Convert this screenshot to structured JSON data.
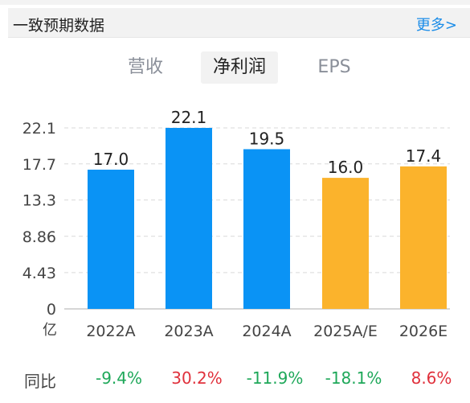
{
  "header": {
    "title": "一致预期数据",
    "more_label": "更多>"
  },
  "tabs": [
    {
      "label": "营收",
      "active": false
    },
    {
      "label": "净利润",
      "active": true
    },
    {
      "label": "EPS",
      "active": false
    }
  ],
  "colors": {
    "actual": "#0a93f5",
    "estimate": "#fbb32c",
    "positive": "#e0313c",
    "negative": "#1fa85a",
    "accent_link": "#1a8ce8"
  },
  "chart_data": {
    "type": "bar",
    "categories": [
      "2022A",
      "2023A",
      "2024A",
      "2025A/E",
      "2026E"
    ],
    "values": [
      17.0,
      22.1,
      19.5,
      16.0,
      17.4
    ],
    "value_labels": [
      "17.0",
      "22.1",
      "19.5",
      "16.0",
      "17.4"
    ],
    "kinds": [
      "actual",
      "actual",
      "actual",
      "estimate",
      "estimate"
    ],
    "y_ticks": [
      0,
      4.43,
      8.86,
      13.3,
      17.7,
      22.1
    ],
    "y_tick_labels": [
      "0",
      "4.43",
      "8.86",
      "13.3",
      "17.7",
      "22.1"
    ],
    "ylim": [
      0,
      22.1
    ],
    "y_unit": "亿",
    "grid": true
  },
  "yoy": {
    "label": "同比",
    "values": [
      "-9.4%",
      "30.2%",
      "-11.9%",
      "-18.1%",
      "8.6%"
    ],
    "signs": [
      "negative",
      "positive",
      "negative",
      "negative",
      "positive"
    ]
  }
}
